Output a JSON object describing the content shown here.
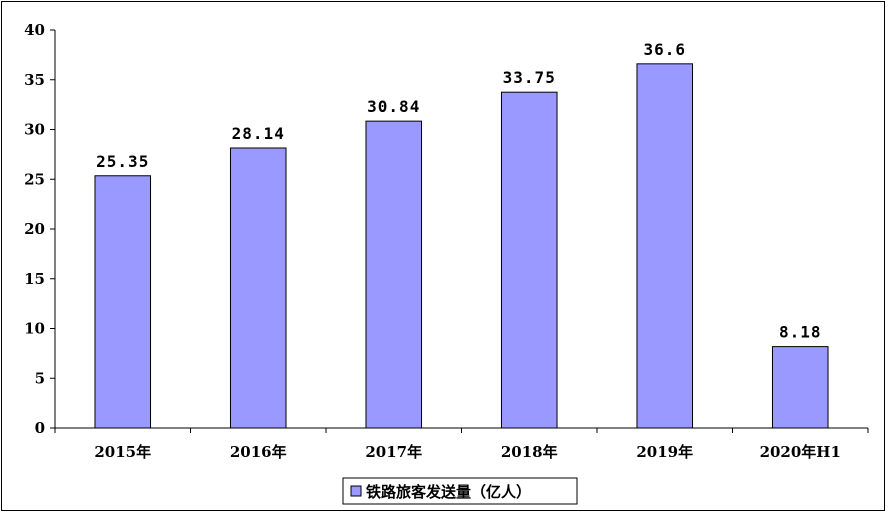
{
  "chart_data": {
    "type": "bar",
    "categories": [
      "2015年",
      "2016年",
      "2017年",
      "2018年",
      "2019年",
      "2020年H1"
    ],
    "series": [
      {
        "name": "铁路旅客发送量（亿人）",
        "values": [
          25.35,
          28.14,
          30.84,
          33.75,
          36.6,
          8.18
        ]
      }
    ],
    "data_labels": [
      "25.35",
      "28.14",
      "30.84",
      "33.75",
      "36.6",
      "8.18"
    ],
    "yticks": [
      "0",
      "5",
      "10",
      "15",
      "20",
      "25",
      "30",
      "35",
      "40"
    ],
    "ylim": [
      0,
      40
    ],
    "grid": false,
    "legend_position": "bottom-center",
    "bar_color": "#9999FF",
    "title": "",
    "xlabel": "",
    "ylabel": ""
  }
}
